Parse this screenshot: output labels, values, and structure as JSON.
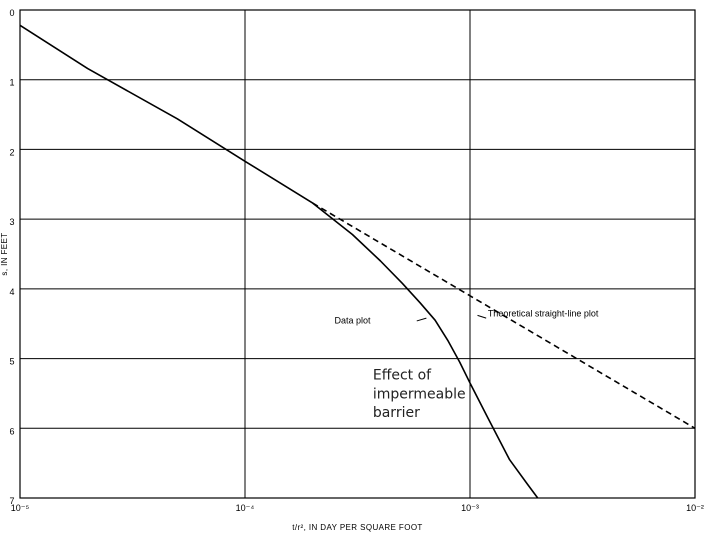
{
  "chart_data": {
    "type": "line",
    "xlabel": "t/r², IN DAY PER SQUARE FOOT",
    "ylabel": "s, IN FEET",
    "xscale": "log",
    "xlim": [
      1e-05,
      0.01
    ],
    "ylim": [
      0,
      7
    ],
    "y_inverted": true,
    "grid": true,
    "x_ticks": [
      {
        "value": 1e-05,
        "label": "10⁻⁵"
      },
      {
        "value": 0.0001,
        "label": "10⁻⁴"
      },
      {
        "value": 0.001,
        "label": "10⁻³"
      },
      {
        "value": 0.01,
        "label": "10⁻²"
      }
    ],
    "y_ticks": [
      {
        "value": 0,
        "label": "0"
      },
      {
        "value": 1,
        "label": "1"
      },
      {
        "value": 2,
        "label": "2"
      },
      {
        "value": 3,
        "label": "3"
      },
      {
        "value": 4,
        "label": "4"
      },
      {
        "value": 5,
        "label": "5"
      },
      {
        "value": 6,
        "label": "6"
      },
      {
        "value": 7,
        "label": "7"
      }
    ],
    "series": [
      {
        "name": "Data plot",
        "style": "solid",
        "color": "#000000",
        "x": [
          1e-05,
          2e-05,
          5e-05,
          0.0001,
          0.0002,
          0.0003,
          0.0004,
          0.0005,
          0.0006,
          0.0007,
          0.0008,
          0.0009,
          0.001,
          0.0012,
          0.0015,
          0.0018,
          0.002
        ],
        "y": [
          0.22,
          0.84,
          1.56,
          2.17,
          2.77,
          3.22,
          3.6,
          3.92,
          4.2,
          4.45,
          4.75,
          5.05,
          5.35,
          5.85,
          6.45,
          6.8,
          7.0
        ]
      },
      {
        "name": "Theoretical straight-line plot",
        "style": "dashed",
        "color": "#000000",
        "x": [
          0.0002,
          0.01
        ],
        "y": [
          2.77,
          6.0
        ]
      }
    ],
    "annotations": [
      {
        "text": "Data plot",
        "x": 0.00025,
        "y": 4.5
      },
      {
        "text": "Theoretical straight-line plot",
        "x": 0.0012,
        "y": 4.4
      },
      {
        "text": "Effect of",
        "x": 0.00037,
        "y": 5.3
      },
      {
        "text": "impermeable",
        "x": 0.00037,
        "y": 5.57
      },
      {
        "text": "barrier",
        "x": 0.00037,
        "y": 5.84
      }
    ]
  }
}
